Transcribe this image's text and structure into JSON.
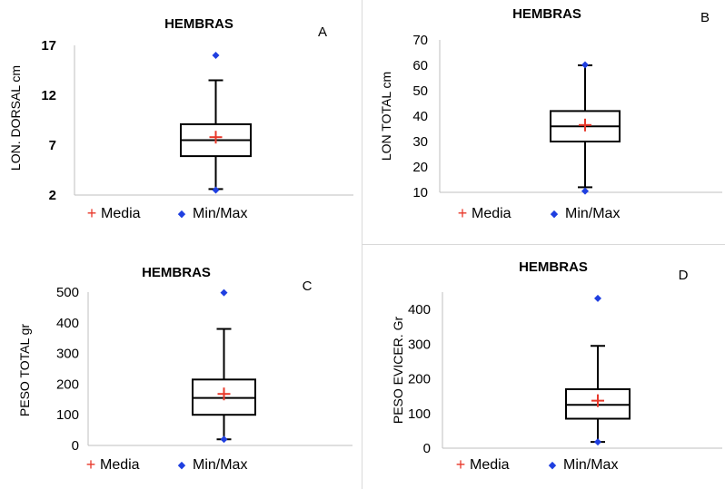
{
  "chart_data": [
    {
      "type": "boxplot",
      "panel": "A",
      "title": "HEMBRAS",
      "ylabel": "LON. DORSAL cm",
      "xlabel": "",
      "ylim": [
        2,
        17
      ],
      "yticks": [
        "2",
        "7",
        "12",
        "17"
      ],
      "box": {
        "whisker_low": 2.6,
        "q1": 5.9,
        "median": 7.5,
        "q3": 9.1,
        "whisker_high": 13.5
      },
      "mean": 7.8,
      "min": 2.5,
      "max": 16.0,
      "legend": [
        "Media",
        "Min/Max"
      ]
    },
    {
      "type": "boxplot",
      "panel": "B",
      "title": "HEMBRAS",
      "ylabel": "LON TOTAL cm",
      "xlabel": "",
      "ylim": [
        10,
        70
      ],
      "yticks": [
        "10",
        "20",
        "30",
        "40",
        "50",
        "60",
        "70"
      ],
      "box": {
        "whisker_low": 12,
        "q1": 30,
        "median": 36,
        "q3": 42,
        "whisker_high": 60
      },
      "mean": 36.5,
      "min": 10.5,
      "max": 60.2,
      "legend": [
        "Media",
        "Min/Max"
      ]
    },
    {
      "type": "boxplot",
      "panel": "C",
      "title": "HEMBRAS",
      "ylabel": "PESO TOTAL gr",
      "xlabel": "",
      "ylim": [
        0,
        500
      ],
      "yticks": [
        "0",
        "100",
        "200",
        "300",
        "400",
        "500"
      ],
      "box": {
        "whisker_low": 20,
        "q1": 100,
        "median": 155,
        "q3": 215,
        "whisker_high": 380
      },
      "mean": 168,
      "min": 20,
      "max": 498,
      "legend": [
        "Media",
        "Min/Max"
      ]
    },
    {
      "type": "boxplot",
      "panel": "D",
      "title": "HEMBRAS",
      "ylabel": "PESO EVICER. Gr",
      "xlabel": "",
      "ylim": [
        0,
        450
      ],
      "yticks": [
        "0",
        "100",
        "200",
        "300",
        "400"
      ],
      "box": {
        "whisker_low": 18,
        "q1": 85,
        "median": 125,
        "q3": 170,
        "whisker_high": 295
      },
      "mean": 137,
      "min": 18,
      "max": 432,
      "legend": [
        "Media",
        "Min/Max"
      ]
    }
  ],
  "colors": {
    "mean_marker": "#e8382a",
    "minmax_marker": "#1f3fe0",
    "box_line": "#000000",
    "axis_line": "#bfbfbf"
  },
  "legend_symbols": {
    "mean": "+",
    "minmax": "◆"
  }
}
